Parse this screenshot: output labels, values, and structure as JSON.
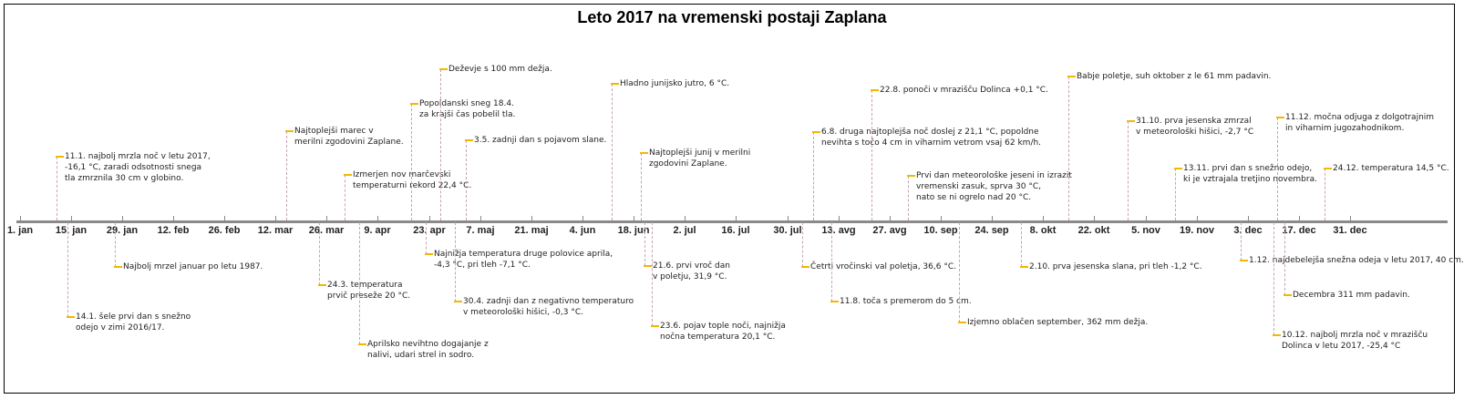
{
  "title": "Leto 2017 na vremenski postaji Zaplana",
  "colors": {
    "axis": "#8a8a8a",
    "marker": "#f2b700",
    "stem": "#c6a2b7",
    "text": "#222222"
  },
  "axis_labels": [
    "1. jan",
    "15. jan",
    "29. jan",
    "12. feb",
    "26. feb",
    "12. mar",
    "26. mar",
    "9. apr",
    "23. apr",
    "7. maj",
    "21. maj",
    "4. jun",
    "18. jun",
    "2. jul",
    "16. jul",
    "30. jul",
    "13. avg",
    "27. avg",
    "10. sep",
    "24. sep",
    "8. okt",
    "22. okt",
    "5. nov",
    "19. nov",
    "3. dec",
    "17. dec",
    "31. dec"
  ],
  "events": [
    {
      "date": "2017-01-11",
      "side": "above",
      "lines": [
        "11.1. najbolj mrzla noč v letu 2017,",
        "-16,1 °C, zaradi odsotnosti snega",
        "tla zmrznila 30 cm v globino."
      ]
    },
    {
      "date": "2017-01-14",
      "side": "below",
      "lines": [
        "14.1. šele prvi dan s snežno",
        "odejo v zimi 2016/17."
      ]
    },
    {
      "date": "2017-01-27",
      "side": "below",
      "lines": [
        "Najbolj mrzel januar po letu 1987."
      ]
    },
    {
      "date": "2017-03-15",
      "side": "above",
      "lines": [
        "Najtoplejši marec v",
        "merilni zgodovini Zaplane."
      ]
    },
    {
      "date": "2017-03-24",
      "side": "below",
      "lines": [
        "24.3. temperatura",
        "prvič preseže 20 °C."
      ]
    },
    {
      "date": "2017-03-31",
      "side": "above",
      "lines": [
        "Izmerjen nov marčevski",
        "temperaturni rekord 22,4 °C."
      ]
    },
    {
      "date": "2017-04-04",
      "side": "below",
      "lines": [
        "Aprilsko nevihtno dogajanje z",
        "nalivi, udari strel in sodro."
      ]
    },
    {
      "date": "2017-04-18",
      "side": "above",
      "lines": [
        "Popoldanski sneg 18.4.",
        "za krajši čas pobelil tla."
      ]
    },
    {
      "date": "2017-04-22",
      "side": "below",
      "lines": [
        "Najnižja temperatura druge polovice aprila,",
        "-4,3 °C, pri tleh -7,1 °C."
      ]
    },
    {
      "date": "2017-04-26",
      "side": "above",
      "lines": [
        "Deževje s 100 mm dežja."
      ]
    },
    {
      "date": "2017-04-30",
      "side": "below",
      "lines": [
        "30.4. zadnji dan z negativno temperaturo",
        "v meteorološki hišici, -0,3 °C."
      ]
    },
    {
      "date": "2017-05-03",
      "side": "above",
      "lines": [
        "3.5. zadnji dan s pojavom slane."
      ]
    },
    {
      "date": "2017-06-12",
      "side": "above",
      "lines": [
        "Hladno junijsko jutro, 6 °C."
      ]
    },
    {
      "date": "2017-06-20",
      "side": "above",
      "lines": [
        "Najtoplejši junij v merilni",
        "zgodovini Zaplane."
      ]
    },
    {
      "date": "2017-06-21",
      "side": "below",
      "lines": [
        "21.6. prvi vroč dan",
        "v poletju, 31,9 °C."
      ]
    },
    {
      "date": "2017-06-23",
      "side": "below",
      "lines": [
        "23.6. pojav tople noči, najnižja",
        "nočna temperatura 20,1 °C."
      ]
    },
    {
      "date": "2017-08-03",
      "side": "below",
      "lines": [
        "Četrti vročinski val poletja, 36,6 °C."
      ]
    },
    {
      "date": "2017-08-06",
      "side": "above",
      "lines": [
        "6.8. druga najtoplejša noč doslej z 21,1 °C, popoldne",
        "nevihta s točo 4 cm in viharnim vetrom vsaj 62 km/h."
      ]
    },
    {
      "date": "2017-08-11",
      "side": "below",
      "lines": [
        "11.8. toča s premerom do 5 cm."
      ]
    },
    {
      "date": "2017-08-22",
      "side": "above",
      "lines": [
        "22.8. ponoči v mrazišču Dolinca +0,1 °C."
      ]
    },
    {
      "date": "2017-09-01",
      "side": "above",
      "lines": [
        "Prvi dan meteorološke jeseni in izrazit",
        "vremenski zasuk, sprva 30 °C,",
        "nato se ni ogrelo nad 20 °C."
      ]
    },
    {
      "date": "2017-09-15",
      "side": "below",
      "lines": [
        "Izjemno oblačen september, 362 mm dežja."
      ]
    },
    {
      "date": "2017-10-02",
      "side": "below",
      "lines": [
        "2.10. prva jesenska slana, pri tleh -1,2 °C."
      ]
    },
    {
      "date": "2017-10-15",
      "side": "above",
      "lines": [
        "Babje poletje, suh oktober z le 61 mm padavin."
      ]
    },
    {
      "date": "2017-10-31",
      "side": "above",
      "lines": [
        "31.10. prva jesenska zmrzal",
        "v meteorološki hišici, -2,7 °C"
      ]
    },
    {
      "date": "2017-11-13",
      "side": "above",
      "lines": [
        "13.11. prvi dan s snežno odejo,",
        "ki je vztrajala tretjino novembra."
      ]
    },
    {
      "date": "2017-12-01",
      "side": "below",
      "lines": [
        "1.12. najdebelejša snežna odeja v letu 2017, 40 cm."
      ]
    },
    {
      "date": "2017-12-10",
      "side": "below",
      "lines": [
        "10.12. najbolj mrzla noč v mrazišču",
        "Dolinca v letu 2017, -25,4 °C"
      ]
    },
    {
      "date": "2017-12-11",
      "side": "above",
      "lines": [
        "11.12. močna odjuga z dolgotrajnim",
        "in viharnim jugozahodnikom."
      ]
    },
    {
      "date": "2017-12-13",
      "side": "below",
      "lines": [
        "Decembra 311 mm padavin."
      ]
    },
    {
      "date": "2017-12-24",
      "side": "above",
      "lines": [
        "24.12. temperatura 14,5 °C."
      ]
    }
  ]
}
